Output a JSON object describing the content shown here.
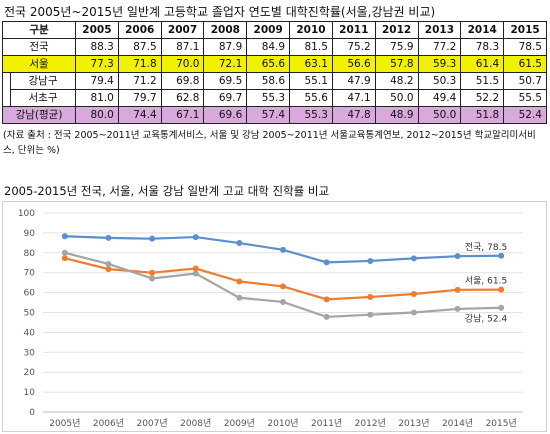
{
  "table_title": "전국 2005년~2015년 일반계 고등학교 졸업자 연도별 대학진학률(서울,강남권 비교)",
  "table": {
    "header_label": "구분",
    "years": [
      "2005",
      "2006",
      "2007",
      "2008",
      "2009",
      "2010",
      "2011",
      "2012",
      "2013",
      "2014",
      "2015"
    ],
    "rows": [
      {
        "label": "전국",
        "values": [
          "88.3",
          "87.5",
          "87.1",
          "87.9",
          "84.9",
          "81.5",
          "75.2",
          "75.9",
          "77.2",
          "78.3",
          "78.5"
        ]
      },
      {
        "label": "서울",
        "values": [
          "77.3",
          "71.8",
          "70.0",
          "72.1",
          "65.6",
          "63.1",
          "56.6",
          "57.8",
          "59.3",
          "61.4",
          "61.5"
        ]
      },
      {
        "label": "강남구",
        "values": [
          "79.4",
          "71.2",
          "69.8",
          "69.5",
          "58.6",
          "55.1",
          "47.9",
          "48.2",
          "50.3",
          "51.5",
          "50.7"
        ]
      },
      {
        "label": "서초구",
        "values": [
          "81.0",
          "79.7",
          "62.8",
          "69.7",
          "55.3",
          "55.6",
          "47.1",
          "50.0",
          "49.4",
          "52.2",
          "55.5"
        ]
      },
      {
        "label": "강남(평균)",
        "values": [
          "80.0",
          "74.4",
          "67.1",
          "69.6",
          "57.4",
          "55.3",
          "47.8",
          "48.9",
          "50.0",
          "51.8",
          "52.4"
        ]
      }
    ]
  },
  "source_note": "(자료 출처 : 전국 2005~2011년 교육통계서비스, 서울 및 강남 2005~2011년 서울교육통계연보, 2012~2015년 학교알리미서비스, 단위는 %)",
  "chart_title": "2005-2015년 전국, 서울, 서울 강남 일반계 고교 대학 진학률 비교",
  "chart_data": {
    "type": "line",
    "categories": [
      "2005년",
      "2006년",
      "2007년",
      "2008년",
      "2009년",
      "2010년",
      "2011년",
      "2012년",
      "2013년",
      "2014년",
      "2015년"
    ],
    "ylim": [
      0,
      100
    ],
    "yticks": [
      0,
      10,
      20,
      30,
      40,
      50,
      60,
      70,
      80,
      90,
      100
    ],
    "grid": true,
    "series": [
      {
        "name": "전국",
        "color": "#5b8fd0",
        "values": [
          88.3,
          87.5,
          87.1,
          87.9,
          84.9,
          81.5,
          75.2,
          75.9,
          77.2,
          78.3,
          78.5
        ],
        "end_label": "전국, 78.5"
      },
      {
        "name": "서울",
        "color": "#ec7d31",
        "values": [
          77.3,
          71.8,
          70.0,
          72.1,
          65.6,
          63.1,
          56.6,
          57.8,
          59.3,
          61.4,
          61.5
        ],
        "end_label": "서울, 61.5"
      },
      {
        "name": "강남",
        "color": "#a5a5a5",
        "values": [
          80.0,
          74.4,
          67.1,
          69.6,
          57.4,
          55.3,
          47.8,
          48.9,
          50.0,
          51.8,
          52.4
        ],
        "end_label": "강남, 52.4"
      }
    ]
  }
}
